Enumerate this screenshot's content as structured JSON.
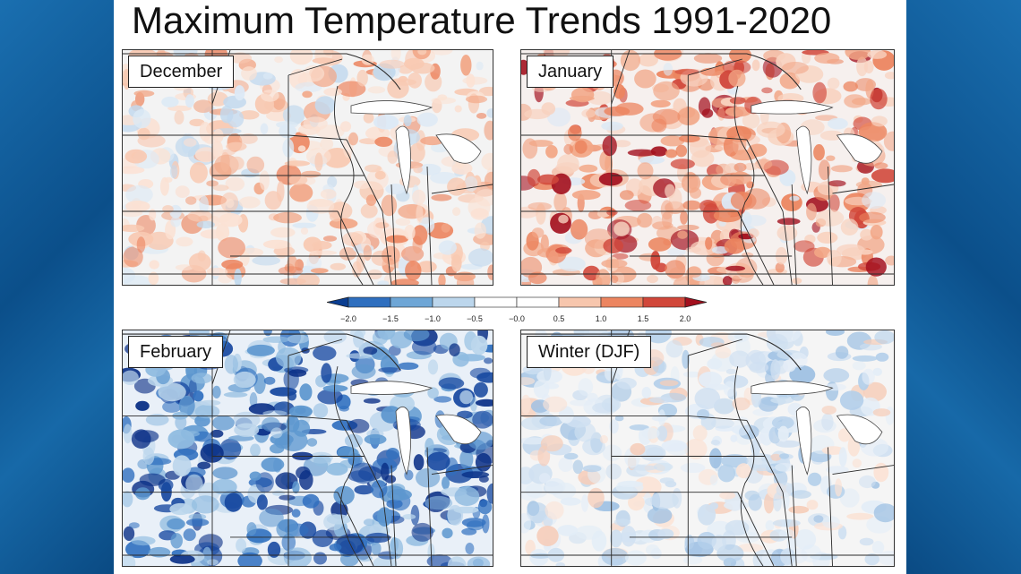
{
  "title": "Maximum Temperature Trends 1991-2020",
  "colorbar": {
    "ticks": [
      "−2.0",
      "−1.5",
      "−1.0",
      "−0.5",
      "−0.0",
      "0.5",
      "1.0",
      "1.5",
      "2.0"
    ],
    "colors": [
      "#0a3d91",
      "#2f6fbf",
      "#6ea6d6",
      "#bcd6ec",
      "#ffffff",
      "#ffffff",
      "#f7c6ad",
      "#ec8560",
      "#d1473a",
      "#a3101e"
    ]
  },
  "panels": [
    {
      "label": "December",
      "theme": "warm-light"
    },
    {
      "label": "January",
      "theme": "warm-strong"
    },
    {
      "label": "February",
      "theme": "cold-strong"
    },
    {
      "label": "Winter (DJF)",
      "theme": "cold-light"
    }
  ]
}
